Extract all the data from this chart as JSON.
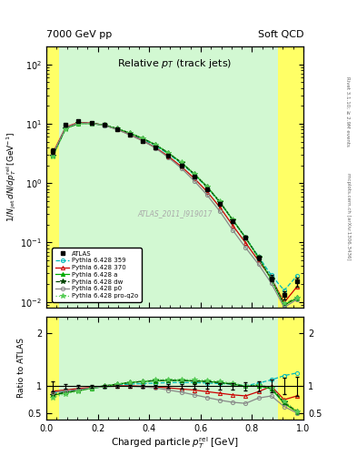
{
  "title_left": "7000 GeV pp",
  "title_right": "Soft QCD",
  "plot_title": "Relative $p_T$ (track jets)",
  "xlabel": "Charged particle $p_T^{\\rm rel}$ [GeV]",
  "ylabel_main": "$1/N_{\\rm jet}\\,dN/dp_T^{\\rm rel}\\,[{\\rm GeV}^{-1}]$",
  "ylabel_ratio": "Ratio to ATLAS",
  "right_label_top": "Rivet 3.1.10; ≥ 2.9M events",
  "right_label_bot": "mcplots.cern.ch [arXiv:1306.3436]",
  "watermark": "ATLAS_2011_I919017",
  "xlim": [
    0.0,
    1.0
  ],
  "ylim_main": [
    0.008,
    200
  ],
  "ylim_ratio": [
    0.38,
    2.3
  ],
  "x_data": [
    0.025,
    0.075,
    0.125,
    0.175,
    0.225,
    0.275,
    0.325,
    0.375,
    0.425,
    0.475,
    0.525,
    0.575,
    0.625,
    0.675,
    0.725,
    0.775,
    0.825,
    0.875,
    0.925,
    0.975
  ],
  "atlas_y": [
    3.5,
    9.5,
    11.0,
    10.5,
    9.5,
    8.0,
    6.5,
    5.2,
    4.0,
    2.9,
    2.0,
    1.3,
    0.8,
    0.45,
    0.23,
    0.12,
    0.055,
    0.025,
    0.013,
    0.022
  ],
  "atlas_yerr": [
    0.35,
    0.4,
    0.35,
    0.3,
    0.25,
    0.2,
    0.18,
    0.15,
    0.12,
    0.1,
    0.08,
    0.06,
    0.04,
    0.025,
    0.015,
    0.009,
    0.005,
    0.003,
    0.002,
    0.004
  ],
  "yellow_xranges": [
    [
      0.0,
      0.05
    ],
    [
      0.9,
      1.0
    ]
  ],
  "green_xrange": [
    0.05,
    0.9
  ],
  "yellow_color": "#FFFF00",
  "green_color": "#90EE90",
  "band_alpha_yellow": 0.6,
  "band_alpha_green": 0.4,
  "series": [
    {
      "label": "Pythia 6.428 359",
      "color": "#00BBBB",
      "linestyle": "--",
      "marker": "o",
      "markersize": 3,
      "filled": false,
      "ratio": [
        0.87,
        0.91,
        0.94,
        0.97,
        0.99,
        1.02,
        1.04,
        1.05,
        1.06,
        1.07,
        1.07,
        1.07,
        1.06,
        1.05,
        1.04,
        1.01,
        1.06,
        1.12,
        1.2,
        1.25
      ]
    },
    {
      "label": "Pythia 6.428 370",
      "color": "#CC0000",
      "linestyle": "-",
      "marker": "^",
      "markersize": 3,
      "filled": false,
      "ratio": [
        0.91,
        0.93,
        0.96,
        0.98,
        1.0,
        1.01,
        1.01,
        1.0,
        0.99,
        0.97,
        0.95,
        0.93,
        0.9,
        0.87,
        0.84,
        0.82,
        0.9,
        1.0,
        0.75,
        0.82
      ]
    },
    {
      "label": "Pythia 6.428 a",
      "color": "#00AA00",
      "linestyle": "-",
      "marker": "^",
      "markersize": 3,
      "filled": true,
      "ratio": [
        0.83,
        0.88,
        0.92,
        0.96,
        1.0,
        1.04,
        1.07,
        1.09,
        1.1,
        1.11,
        1.11,
        1.1,
        1.09,
        1.07,
        1.04,
        1.0,
        1.01,
        0.95,
        0.68,
        0.52
      ]
    },
    {
      "label": "Pythia 6.428 dw",
      "color": "#004400",
      "linestyle": "--",
      "marker": "*",
      "markersize": 4,
      "filled": true,
      "ratio": [
        0.84,
        0.89,
        0.93,
        0.97,
        1.01,
        1.04,
        1.07,
        1.09,
        1.11,
        1.11,
        1.11,
        1.1,
        1.09,
        1.07,
        1.04,
        1.0,
        1.02,
        0.97,
        0.7,
        0.53
      ]
    },
    {
      "label": "Pythia 6.428 p0",
      "color": "#888888",
      "linestyle": "-",
      "marker": "o",
      "markersize": 3,
      "filled": false,
      "ratio": [
        0.89,
        0.91,
        0.94,
        0.97,
        0.99,
        1.0,
        1.0,
        0.99,
        0.97,
        0.93,
        0.89,
        0.84,
        0.79,
        0.74,
        0.7,
        0.68,
        0.78,
        0.82,
        0.62,
        0.5
      ]
    },
    {
      "label": "Pythia 6.428 pro-q2o",
      "color": "#55CC55",
      "linestyle": ":",
      "marker": "*",
      "markersize": 4,
      "filled": true,
      "ratio": [
        0.79,
        0.86,
        0.91,
        0.96,
        1.0,
        1.04,
        1.08,
        1.1,
        1.12,
        1.13,
        1.13,
        1.12,
        1.11,
        1.09,
        1.06,
        1.01,
        1.03,
        0.98,
        0.72,
        0.53
      ]
    }
  ]
}
